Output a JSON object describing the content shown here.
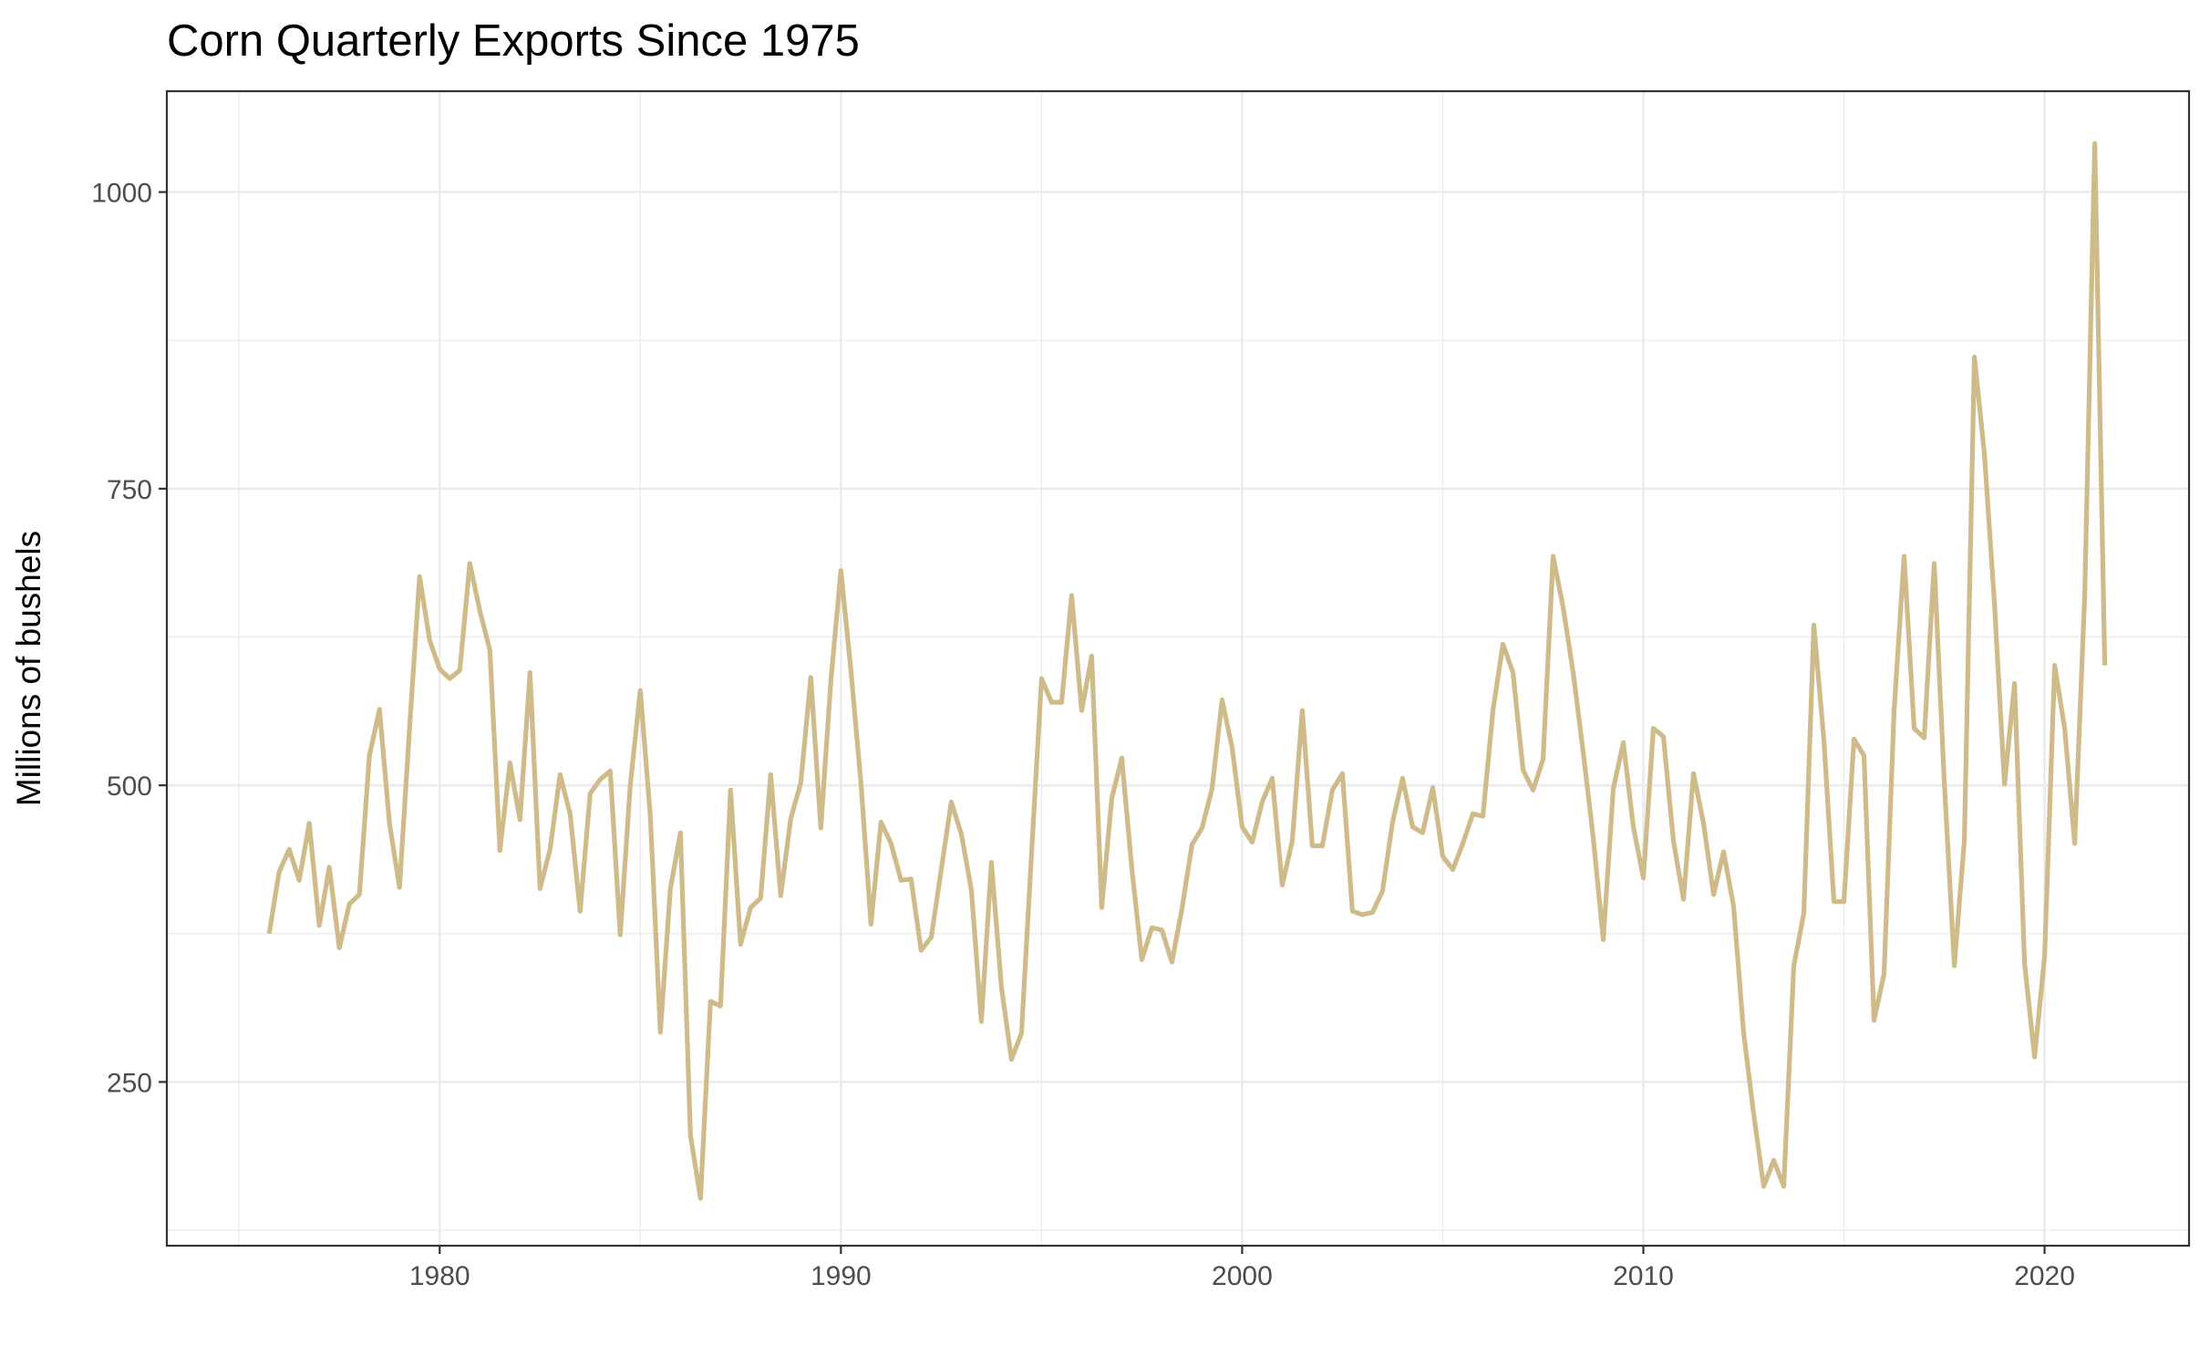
{
  "chart_data": {
    "type": "line",
    "title": "Corn Quarterly Exports Since 1975",
    "xlabel": "",
    "ylabel": "Millions of bushels",
    "xlim": [
      1973.2,
      2023.6
    ],
    "ylim": [
      112,
      1085
    ],
    "x_ticks": [
      1980,
      1990,
      2000,
      2010,
      2020
    ],
    "y_ticks": [
      250,
      500,
      750,
      1000
    ],
    "x_minor_ticks": [
      1975,
      1985,
      1995,
      2005,
      2015
    ],
    "y_minor_ticks": [
      125,
      375,
      625,
      875
    ],
    "grid": true,
    "legend": "none",
    "line_color": "#cfbb8a",
    "x": [
      1975.75,
      1976.0,
      1976.25,
      1976.5,
      1976.75,
      1977.0,
      1977.25,
      1977.5,
      1977.75,
      1978.0,
      1978.25,
      1978.5,
      1978.75,
      1979.0,
      1979.25,
      1979.5,
      1979.75,
      1980.0,
      1980.25,
      1980.5,
      1980.75,
      1981.0,
      1981.25,
      1981.5,
      1981.75,
      1982.0,
      1982.25,
      1982.5,
      1982.75,
      1983.0,
      1983.25,
      1983.5,
      1983.75,
      1984.0,
      1984.25,
      1984.5,
      1984.75,
      1985.0,
      1985.25,
      1985.5,
      1985.75,
      1986.0,
      1986.25,
      1986.5,
      1986.75,
      1987.0,
      1987.25,
      1987.5,
      1987.75,
      1988.0,
      1988.25,
      1988.5,
      1988.75,
      1989.0,
      1989.25,
      1989.5,
      1989.75,
      1990.0,
      1990.25,
      1990.5,
      1990.75,
      1991.0,
      1991.25,
      1991.5,
      1991.75,
      1992.0,
      1992.25,
      1992.5,
      1992.75,
      1993.0,
      1993.25,
      1993.5,
      1993.75,
      1994.0,
      1994.25,
      1994.5,
      1994.75,
      1995.0,
      1995.25,
      1995.5,
      1995.75,
      1996.0,
      1996.25,
      1996.5,
      1996.75,
      1997.0,
      1997.25,
      1997.5,
      1997.75,
      1998.0,
      1998.25,
      1998.5,
      1998.75,
      1999.0,
      1999.25,
      1999.5,
      1999.75,
      2000.0,
      2000.25,
      2000.5,
      2000.75,
      2001.0,
      2001.25,
      2001.5,
      2001.75,
      2002.0,
      2002.25,
      2002.5,
      2002.75,
      2003.0,
      2003.25,
      2003.5,
      2003.75,
      2004.0,
      2004.25,
      2004.5,
      2004.75,
      2005.0,
      2005.25,
      2005.5,
      2005.75,
      2006.0,
      2006.25,
      2006.5,
      2006.75,
      2007.0,
      2007.25,
      2007.5,
      2007.75,
      2008.0,
      2008.25,
      2008.5,
      2008.75,
      2009.0,
      2009.25,
      2009.5,
      2009.75,
      2010.0,
      2010.25,
      2010.5,
      2010.75,
      2011.0,
      2011.25,
      2011.5,
      2011.75,
      2012.0,
      2012.25,
      2012.5,
      2012.75,
      2013.0,
      2013.25,
      2013.5,
      2013.75,
      2014.0,
      2014.25,
      2014.5,
      2014.75,
      2015.0,
      2015.25,
      2015.5,
      2015.75,
      2016.0,
      2016.25,
      2016.5,
      2016.75,
      2017.0,
      2017.25,
      2017.5,
      2017.75,
      2018.0,
      2018.25,
      2018.5,
      2018.75,
      2019.0,
      2019.25,
      2019.5,
      2019.75,
      2020.0,
      2020.25,
      2020.5,
      2020.75,
      2021.0,
      2021.25,
      2021.5
    ],
    "y": [
      375,
      427,
      446,
      420,
      468,
      382,
      431,
      363,
      400,
      408,
      525,
      564,
      468,
      414,
      548,
      676,
      622,
      598,
      590,
      597,
      687,
      647,
      614,
      445,
      519,
      471,
      595,
      413,
      446,
      509,
      476,
      394,
      493,
      505,
      512,
      374,
      500,
      580,
      474,
      292,
      413,
      460,
      205,
      152,
      318,
      314,
      496,
      366,
      397,
      405,
      509,
      407,
      472,
      502,
      591,
      464,
      588,
      681,
      597,
      502,
      383,
      469,
      451,
      420,
      421,
      361,
      372,
      429,
      486,
      459,
      412,
      301,
      435,
      330,
      269,
      291,
      442,
      590,
      570,
      570,
      660,
      563,
      609,
      397,
      489,
      523,
      430,
      353,
      380,
      378,
      351,
      396,
      450,
      464,
      497,
      572,
      532,
      465,
      452,
      486,
      506,
      416,
      453,
      563,
      449,
      449,
      496,
      510,
      394,
      391,
      393,
      411,
      469,
      506,
      465,
      460,
      498,
      440,
      429,
      451,
      476,
      474,
      563,
      619,
      595,
      513,
      496,
      522,
      693,
      650,
      595,
      528,
      456,
      370,
      497,
      536,
      465,
      422,
      548,
      541,
      453,
      404,
      510,
      468,
      408,
      444,
      398,
      291,
      223,
      162,
      184,
      162,
      348,
      392,
      635,
      538,
      402,
      402,
      539,
      525,
      302,
      341,
      563,
      693,
      548,
      540,
      687,
      502,
      348,
      454,
      861,
      779,
      653,
      501,
      586,
      350,
      271,
      356,
      601,
      548,
      451,
      660,
      1041,
      601
    ]
  }
}
